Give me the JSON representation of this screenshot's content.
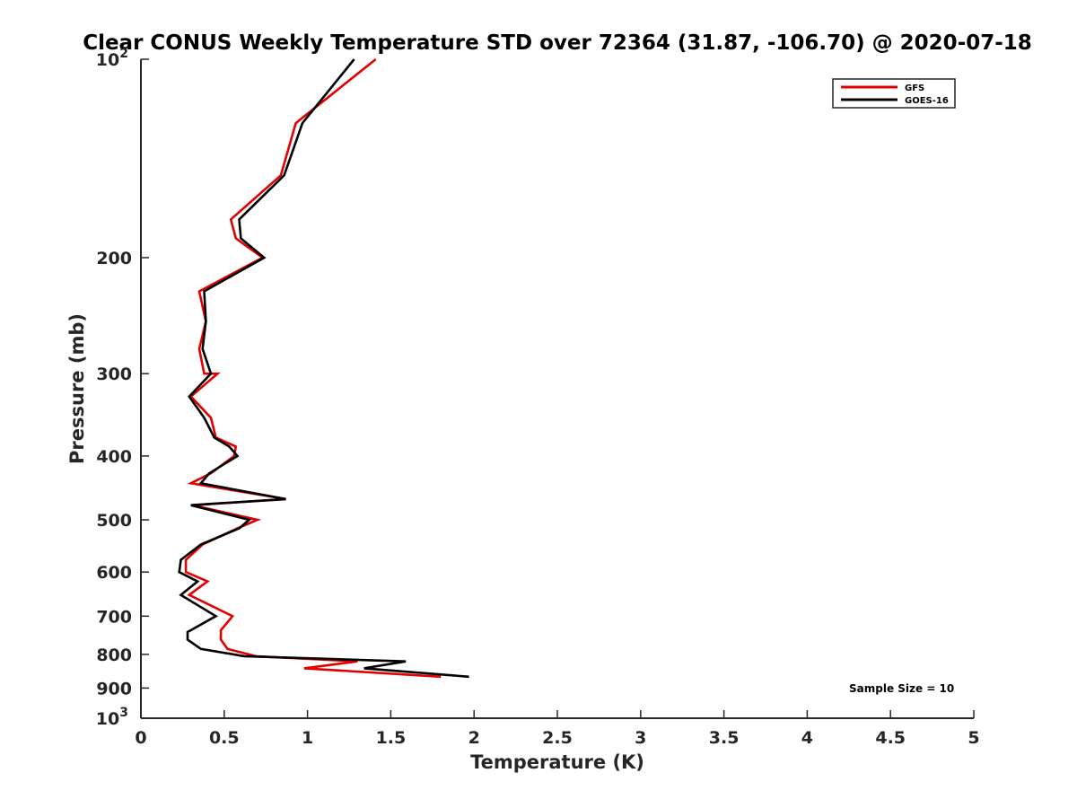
{
  "chart_data": {
    "type": "line",
    "title": "Clear CONUS Weekly Temperature STD over 72364 (31.87, -106.70) @ 2020-07-18",
    "xlabel": "Temperature (K)",
    "ylabel": "Pressure (mb)",
    "xlim": [
      0,
      5
    ],
    "ylim": [
      100,
      1000
    ],
    "yscale": "log",
    "y_reversed": true,
    "grid": false,
    "legend_position": "top-right",
    "x_ticks": [
      "0",
      "0.5",
      "1",
      "1.5",
      "2",
      "2.5",
      "3",
      "3.5",
      "4",
      "4.5",
      "5"
    ],
    "y_ticks": [
      {
        "value": 100,
        "base": "10",
        "exp": "2"
      },
      {
        "value": 200,
        "label": "200"
      },
      {
        "value": 300,
        "label": "300"
      },
      {
        "value": 400,
        "label": "400"
      },
      {
        "value": 500,
        "label": "500"
      },
      {
        "value": 600,
        "label": "600"
      },
      {
        "value": 700,
        "label": "700"
      },
      {
        "value": 800,
        "label": "800"
      },
      {
        "value": 900,
        "label": "900"
      },
      {
        "value": 1000,
        "base": "10",
        "exp": "3"
      }
    ],
    "annotation": "Sample Size = 10",
    "series": [
      {
        "name": "GFS",
        "color": "#e00000",
        "points": [
          [
            1.41,
            100
          ],
          [
            0.93,
            125
          ],
          [
            0.84,
            150
          ],
          [
            0.54,
            175
          ],
          [
            0.57,
            187
          ],
          [
            0.73,
            200
          ],
          [
            0.35,
            225
          ],
          [
            0.39,
            250
          ],
          [
            0.35,
            275
          ],
          [
            0.38,
            300
          ],
          [
            0.46,
            300
          ],
          [
            0.3,
            325
          ],
          [
            0.42,
            350
          ],
          [
            0.45,
            375
          ],
          [
            0.57,
            387
          ],
          [
            0.56,
            400
          ],
          [
            0.42,
            425
          ],
          [
            0.3,
            440
          ],
          [
            0.87,
            465
          ],
          [
            0.31,
            475
          ],
          [
            0.7,
            500
          ],
          [
            0.58,
            515
          ],
          [
            0.37,
            545
          ],
          [
            0.27,
            575
          ],
          [
            0.27,
            600
          ],
          [
            0.4,
            620
          ],
          [
            0.29,
            650
          ],
          [
            0.55,
            700
          ],
          [
            0.48,
            735
          ],
          [
            0.48,
            760
          ],
          [
            0.52,
            785
          ],
          [
            0.69,
            805
          ],
          [
            1.3,
            820
          ],
          [
            0.98,
            840
          ],
          [
            1.8,
            865
          ]
        ]
      },
      {
        "name": "GOES-16",
        "color": "#000000",
        "points": [
          [
            1.28,
            100
          ],
          [
            0.97,
            125
          ],
          [
            0.86,
            150
          ],
          [
            0.59,
            175
          ],
          [
            0.6,
            187
          ],
          [
            0.74,
            200
          ],
          [
            0.38,
            225
          ],
          [
            0.39,
            250
          ],
          [
            0.37,
            275
          ],
          [
            0.42,
            300
          ],
          [
            0.29,
            325
          ],
          [
            0.38,
            350
          ],
          [
            0.44,
            375
          ],
          [
            0.53,
            387
          ],
          [
            0.58,
            400
          ],
          [
            0.41,
            425
          ],
          [
            0.36,
            440
          ],
          [
            0.87,
            465
          ],
          [
            0.3,
            475
          ],
          [
            0.65,
            500
          ],
          [
            0.59,
            515
          ],
          [
            0.36,
            545
          ],
          [
            0.24,
            575
          ],
          [
            0.23,
            600
          ],
          [
            0.34,
            620
          ],
          [
            0.24,
            650
          ],
          [
            0.45,
            700
          ],
          [
            0.28,
            740
          ],
          [
            0.28,
            760
          ],
          [
            0.36,
            785
          ],
          [
            0.62,
            805
          ],
          [
            1.59,
            820
          ],
          [
            1.34,
            840
          ],
          [
            1.97,
            865
          ]
        ]
      }
    ]
  }
}
